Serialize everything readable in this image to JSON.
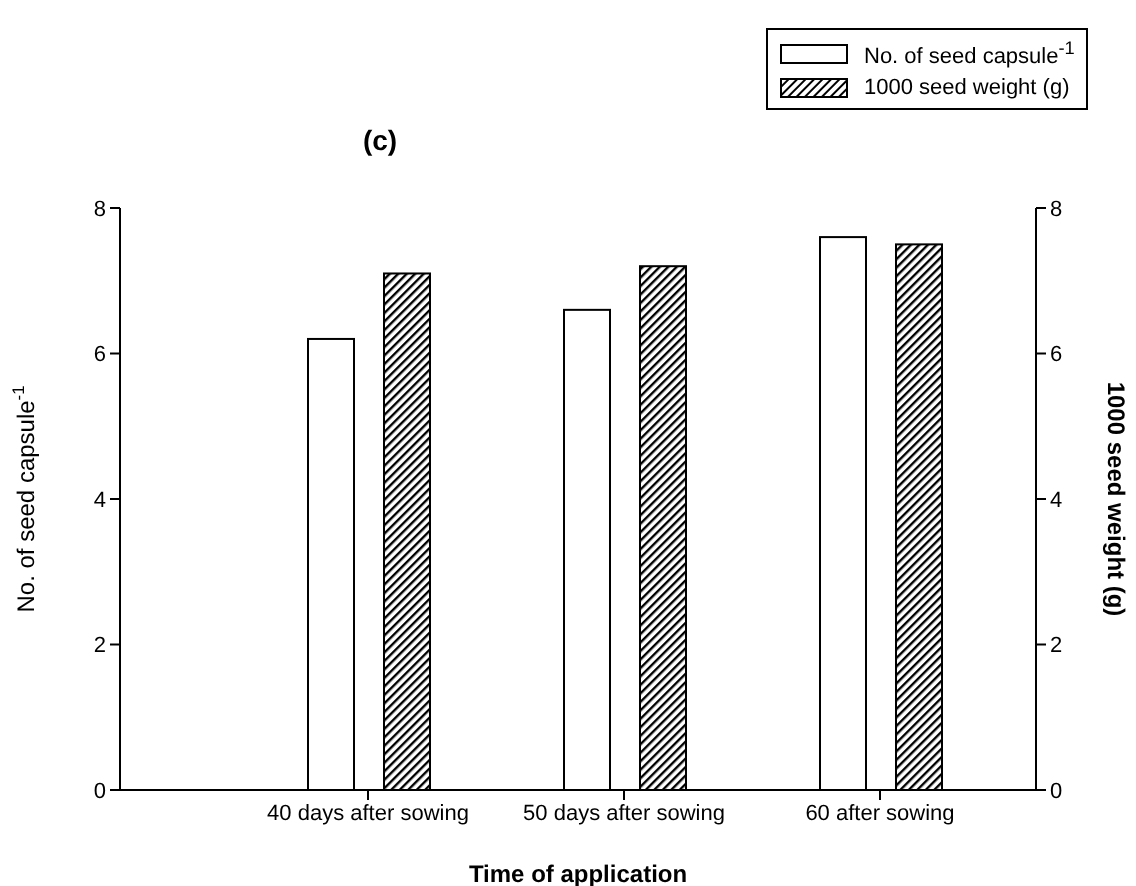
{
  "chart_data": {
    "type": "bar",
    "title": "(c)",
    "xlabel": "Time of application",
    "ylabel": "No. of seed capsule$^{-1}$",
    "y2label": "1000 seed weight (g)",
    "categories": [
      "40 days after sowing",
      "50 days after sowing",
      "60 after sowing"
    ],
    "series": [
      {
        "name": "No. of seed capsule$^{-1}$",
        "color": "#ffffff",
        "values": [
          6.2,
          6.6,
          7.6
        ]
      },
      {
        "name": "1000 seed weight (g)",
        "color": "#000000",
        "values": [
          7.1,
          7.2,
          7.5
        ],
        "axis": "y2"
      }
    ],
    "ylim": [
      0,
      8
    ],
    "yticks": [
      0,
      2,
      4,
      6,
      8
    ],
    "y2lim": [
      0,
      8
    ],
    "y2ticks": [
      0,
      2,
      4,
      6,
      8
    ],
    "grid": false,
    "legend": "top right"
  }
}
